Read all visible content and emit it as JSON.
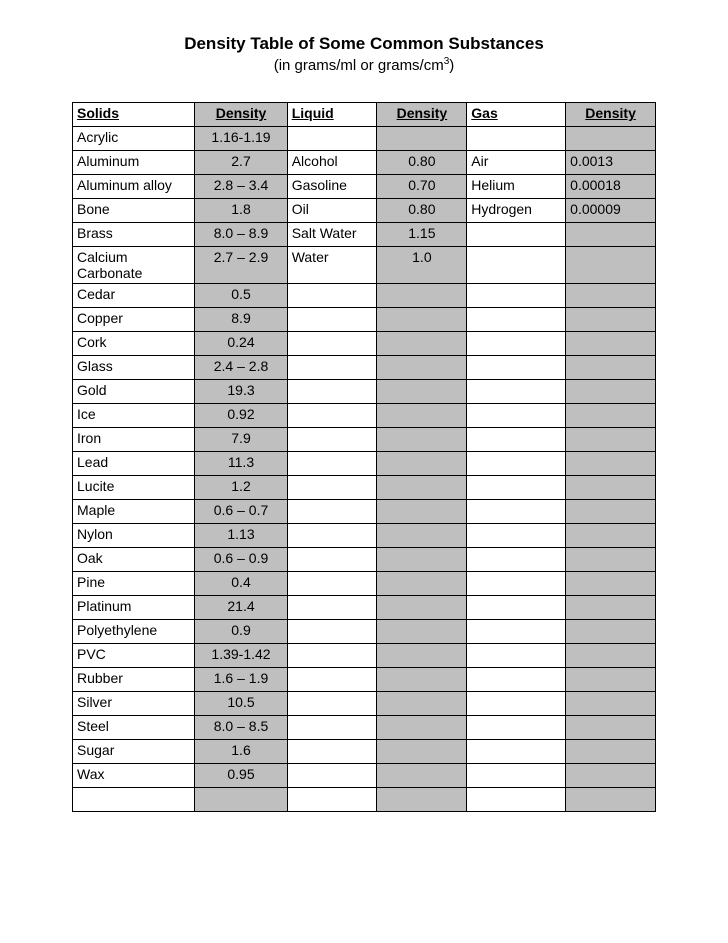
{
  "title": "Density Table of Some Common Substances",
  "subtitle_prefix": "(in grams/ml or grams/cm",
  "subtitle_sup": "3",
  "subtitle_suffix": ")",
  "headers": {
    "solids": "Solids",
    "density1": "Density",
    "liquid": "Liquid",
    "density2": "Density",
    "gas": "Gas",
    "density3": "Density"
  },
  "colors": {
    "shaded_bg": "#bfbfbf",
    "border": "#000000",
    "page_bg": "#ffffff",
    "text": "#000000"
  },
  "font_family": "Verdana",
  "title_fontsize": 17,
  "cell_fontsize": 14,
  "column_widths_pct": [
    18.8,
    14.2,
    13.8,
    13.8,
    15.2,
    13.8
  ],
  "alignments": [
    "left",
    "center",
    "left",
    "center",
    "left",
    "center"
  ],
  "shaded_columns": [
    1,
    3,
    5
  ],
  "rows": [
    {
      "solid": "Acrylic",
      "d1": "1.16-1.19",
      "liquid": "",
      "d2": "",
      "gas": "",
      "d3": ""
    },
    {
      "solid": "Aluminum",
      "d1": "2.7",
      "liquid": "Alcohol",
      "d2": "0.80",
      "gas": "Air",
      "d3": "0.0013"
    },
    {
      "solid": "Aluminum alloy",
      "d1": "2.8 – 3.4",
      "liquid": "Gasoline",
      "d2": "0.70",
      "gas": "Helium",
      "d3": "0.00018"
    },
    {
      "solid": "Bone",
      "d1": "1.8",
      "liquid": "Oil",
      "d2": "0.80",
      "gas": "Hydrogen",
      "d3": "0.00009"
    },
    {
      "solid": "Brass",
      "d1": "8.0 – 8.9",
      "liquid": "Salt Water",
      "d2": "1.15",
      "gas": "",
      "d3": ""
    },
    {
      "solid": "Calcium Carbonate",
      "d1": "2.7 – 2.9",
      "liquid": "Water",
      "d2": "1.0",
      "gas": "",
      "d3": ""
    },
    {
      "solid": "Cedar",
      "d1": "0.5",
      "liquid": "",
      "d2": "",
      "gas": "",
      "d3": ""
    },
    {
      "solid": "Copper",
      "d1": "8.9",
      "liquid": "",
      "d2": "",
      "gas": "",
      "d3": ""
    },
    {
      "solid": "Cork",
      "d1": "0.24",
      "liquid": "",
      "d2": "",
      "gas": "",
      "d3": ""
    },
    {
      "solid": "Glass",
      "d1": "2.4 – 2.8",
      "liquid": "",
      "d2": "",
      "gas": "",
      "d3": ""
    },
    {
      "solid": "Gold",
      "d1": "19.3",
      "liquid": "",
      "d2": "",
      "gas": "",
      "d3": ""
    },
    {
      "solid": "Ice",
      "d1": "0.92",
      "liquid": "",
      "d2": "",
      "gas": "",
      "d3": ""
    },
    {
      "solid": "Iron",
      "d1": "7.9",
      "liquid": "",
      "d2": "",
      "gas": "",
      "d3": ""
    },
    {
      "solid": "Lead",
      "d1": "11.3",
      "liquid": "",
      "d2": "",
      "gas": "",
      "d3": ""
    },
    {
      "solid": "Lucite",
      "d1": "1.2",
      "liquid": "",
      "d2": "",
      "gas": "",
      "d3": ""
    },
    {
      "solid": "Maple",
      "d1": "0.6 – 0.7",
      "liquid": "",
      "d2": "",
      "gas": "",
      "d3": ""
    },
    {
      "solid": "Nylon",
      "d1": "1.13",
      "liquid": "",
      "d2": "",
      "gas": "",
      "d3": ""
    },
    {
      "solid": "Oak",
      "d1": "0.6 – 0.9",
      "liquid": "",
      "d2": "",
      "gas": "",
      "d3": ""
    },
    {
      "solid": "Pine",
      "d1": "0.4",
      "liquid": "",
      "d2": "",
      "gas": "",
      "d3": ""
    },
    {
      "solid": "Platinum",
      "d1": "21.4",
      "liquid": "",
      "d2": "",
      "gas": "",
      "d3": ""
    },
    {
      "solid": "Polyethylene",
      "d1": "0.9",
      "liquid": "",
      "d2": "",
      "gas": "",
      "d3": ""
    },
    {
      "solid": "PVC",
      "d1": "1.39-1.42",
      "liquid": "",
      "d2": "",
      "gas": "",
      "d3": ""
    },
    {
      "solid": "Rubber",
      "d1": "1.6 – 1.9",
      "liquid": "",
      "d2": "",
      "gas": "",
      "d3": ""
    },
    {
      "solid": "Silver",
      "d1": "10.5",
      "liquid": "",
      "d2": "",
      "gas": "",
      "d3": ""
    },
    {
      "solid": "Steel",
      "d1": "8.0 – 8.5",
      "liquid": "",
      "d2": "",
      "gas": "",
      "d3": ""
    },
    {
      "solid": "Sugar",
      "d1": "1.6",
      "liquid": "",
      "d2": "",
      "gas": "",
      "d3": ""
    },
    {
      "solid": "Wax",
      "d1": "0.95",
      "liquid": "",
      "d2": "",
      "gas": "",
      "d3": ""
    },
    {
      "solid": "",
      "d1": "",
      "liquid": "",
      "d2": "",
      "gas": "",
      "d3": ""
    }
  ]
}
